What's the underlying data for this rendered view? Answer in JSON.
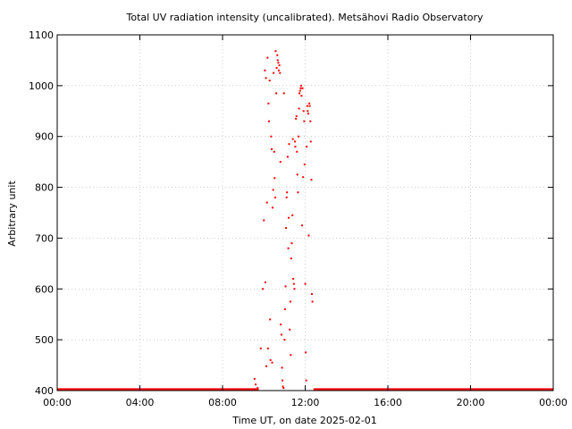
{
  "chart_data": {
    "type": "scatter",
    "title": "Total UV radiation intensity (uncalibrated). Metsähovi Radio Observatory",
    "xlabel": "Time UT, on date 2025-02-01",
    "ylabel": "Arbitrary unit",
    "xlim": [
      0,
      24
    ],
    "ylim": [
      400,
      1100
    ],
    "x_ticks": [
      0,
      4,
      8,
      12,
      16,
      20,
      24
    ],
    "x_tick_labels": [
      "00:00",
      "04:00",
      "08:00",
      "12:00",
      "16:00",
      "20:00",
      "00:00"
    ],
    "y_ticks": [
      400,
      500,
      600,
      700,
      800,
      900,
      1000,
      1100
    ],
    "y_tick_labels": [
      "400",
      "500",
      "600",
      "700",
      "800",
      "900",
      "1000",
      "1100"
    ],
    "grid": true,
    "marker_color": "#ff0000",
    "baseline_segments": [
      {
        "x_start": 0.0,
        "x_end": 9.75,
        "y": 402
      },
      {
        "x_start": 12.4,
        "x_end": 24.0,
        "y": 402
      }
    ],
    "series": [
      {
        "x": [
          9.55,
          9.6,
          9.7,
          9.85,
          9.95,
          10.0,
          10.05,
          10.07,
          10.1,
          10.12,
          10.15,
          10.18,
          10.2,
          10.22,
          10.25,
          10.28,
          10.3,
          10.32,
          10.35,
          10.38,
          10.4,
          10.42,
          10.45,
          10.47,
          10.5,
          10.52,
          10.55,
          10.57,
          10.6,
          10.62,
          10.65,
          10.67,
          10.7,
          10.72,
          10.75,
          10.78,
          10.8,
          10.82,
          10.85,
          10.88,
          10.9,
          10.92,
          10.95,
          10.97,
          11.0,
          11.02,
          11.05,
          11.07,
          11.1,
          11.12,
          11.15,
          11.18,
          11.2,
          11.22,
          11.25,
          11.28,
          11.3,
          11.32,
          11.35,
          11.38,
          11.4,
          11.42,
          11.45,
          11.48,
          11.5,
          11.52,
          11.55,
          11.58,
          11.6,
          11.62,
          11.65,
          11.68,
          11.7,
          11.72,
          11.75,
          11.78,
          11.8,
          11.82,
          11.85,
          11.87,
          11.9,
          11.92,
          11.95,
          11.97,
          12.0,
          12.02,
          12.05,
          12.07,
          12.1,
          12.12,
          12.15,
          12.17,
          12.2,
          12.22,
          12.25,
          12.27,
          12.3,
          12.32,
          12.35
        ],
        "y": [
          423,
          412,
          405,
          483,
          600,
          735,
          1030,
          613,
          1015,
          448,
          770,
          1055,
          483,
          965,
          930,
          1010,
          540,
          460,
          900,
          875,
          455,
          760,
          795,
          1025,
          870,
          818,
          780,
          1068,
          985,
          1035,
          1060,
          1050,
          1045,
          1030,
          1040,
          1025,
          850,
          530,
          510,
          445,
          420,
          408,
          405,
          985,
          500,
          560,
          605,
          720,
          780,
          790,
          860,
          680,
          740,
          885,
          520,
          575,
          470,
          660,
          690,
          745,
          895,
          620,
          610,
          600,
          890,
          880,
          935,
          940,
          870,
          825,
          790,
          900,
          955,
          985,
          990,
          995,
          1000,
          980,
          725,
          995,
          820,
          950,
          930,
          845,
          610,
          475,
          420,
          880,
          960,
          950,
          945,
          705,
          965,
          960,
          930,
          890,
          815,
          590,
          575
        ]
      }
    ]
  }
}
